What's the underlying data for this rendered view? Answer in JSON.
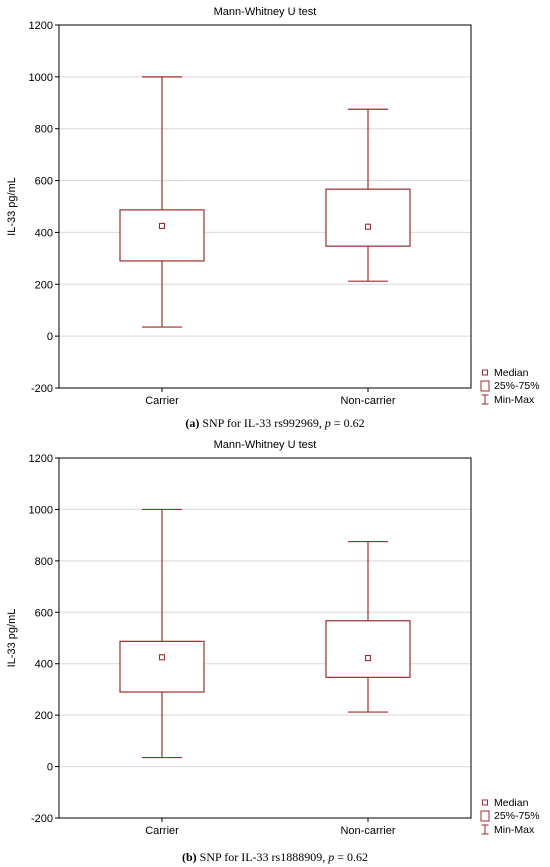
{
  "chart_data": [
    {
      "type": "box",
      "title": "Mann-Whitney U test",
      "ylabel": "IL-33 pg/mL",
      "ylim": [
        -200,
        1200
      ],
      "yticks": [
        -200,
        0,
        200,
        400,
        600,
        800,
        1000,
        1200
      ],
      "grid": true,
      "categories": [
        "Carrier",
        "Non-carrier"
      ],
      "boxes": [
        {
          "category": "Carrier",
          "min": 35,
          "q1": 290,
          "median": 425,
          "q3": 487,
          "max": 1000
        },
        {
          "category": "Non-carrier",
          "min": 212,
          "q1": 347,
          "median": 422,
          "q3": 567,
          "max": 875
        }
      ],
      "legend": {
        "position": "bottom-right",
        "items": [
          "Median",
          "25%-75%",
          "Min-Max"
        ]
      },
      "caption": {
        "label": "(a)",
        "text": " SNP for IL-33 rs992969, ",
        "p_symbol": "p",
        "p_value": " = 0.62"
      }
    },
    {
      "type": "box",
      "title": "Mann-Whitney U test",
      "ylabel": "IL-33 pg/mL",
      "ylim": [
        -200,
        1200
      ],
      "yticks": [
        -200,
        0,
        200,
        400,
        600,
        800,
        1000,
        1200
      ],
      "grid": true,
      "categories": [
        "Carrier",
        "Non-carrier"
      ],
      "boxes": [
        {
          "category": "Carrier",
          "min": 35,
          "q1": 290,
          "median": 425,
          "q3": 487,
          "max": 1000
        },
        {
          "category": "Non-carrier",
          "min": 212,
          "q1": 347,
          "median": 422,
          "q3": 567,
          "max": 875
        }
      ],
      "legend": {
        "position": "bottom-right",
        "items": [
          "Median",
          "25%-75%",
          "Min-Max"
        ]
      },
      "caption": {
        "label": "(b)",
        "text": " SNP for IL-33 rs1888909, ",
        "p_symbol": "p",
        "p_value": " = 0.62"
      }
    }
  ],
  "colors": {
    "box": "#9b2d2d",
    "grid": "#d9d9d9",
    "axis": "#000000"
  }
}
